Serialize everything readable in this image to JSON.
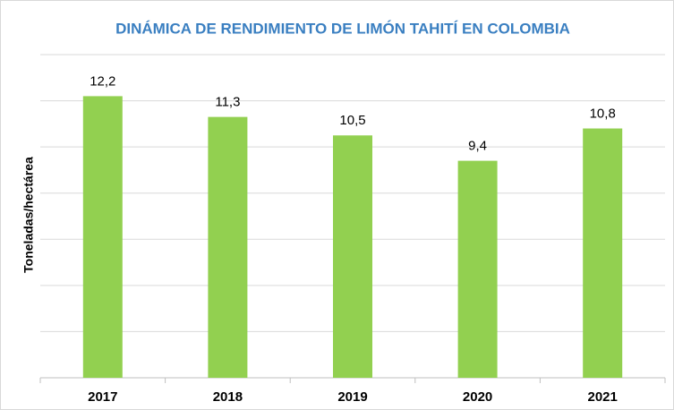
{
  "chart_data": {
    "type": "bar",
    "title": "DINÁMICA DE RENDIMIENTO DE LIMÓN TAHITÍ EN COLOMBIA",
    "y_label": "Toneladas/hectárea",
    "categories": [
      "2017",
      "2018",
      "2019",
      "2020",
      "2021"
    ],
    "values": [
      12.2,
      11.3,
      10.5,
      9.4,
      10.8
    ],
    "value_labels": [
      "12,2",
      "11,3",
      "10,5",
      "9,4",
      "10,8"
    ],
    "color": "#92d050",
    "ylim": [
      0,
      14
    ],
    "yticks": [
      0,
      2,
      4,
      6,
      8,
      10,
      12,
      14
    ],
    "grid": true
  }
}
